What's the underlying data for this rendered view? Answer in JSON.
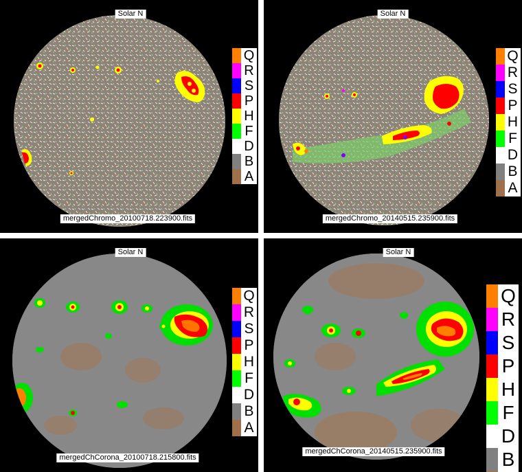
{
  "panels": [
    {
      "title": "Solar N",
      "filename": "mergedChromo_20100718.223900.fits"
    },
    {
      "title": "Solar N",
      "filename": "mergedChromo_20140515.235900.fits"
    },
    {
      "title": "Solar N",
      "filename": "mergedChCorona_20100718.215800.fits"
    },
    {
      "title": "Solar N",
      "filename": "mergedChCorona_20140515.235900.fits"
    }
  ],
  "legend": [
    {
      "label": "Q",
      "color": "#ff8000"
    },
    {
      "label": "R",
      "color": "#ff00ff"
    },
    {
      "label": "S",
      "color": "#0000ff"
    },
    {
      "label": "P",
      "color": "#ff0000"
    },
    {
      "label": "H",
      "color": "#ffff00"
    },
    {
      "label": "F",
      "color": "#00ff00"
    },
    {
      "label": "D",
      "color": "#ffffff"
    },
    {
      "label": "B",
      "color": "#808080"
    },
    {
      "label": "A",
      "color": "#a0704a"
    }
  ],
  "colors": {
    "background": "#000000",
    "chromo_disk": "#8a8078",
    "corona_disk": "#888888",
    "quiet_brown": "#a47652"
  }
}
